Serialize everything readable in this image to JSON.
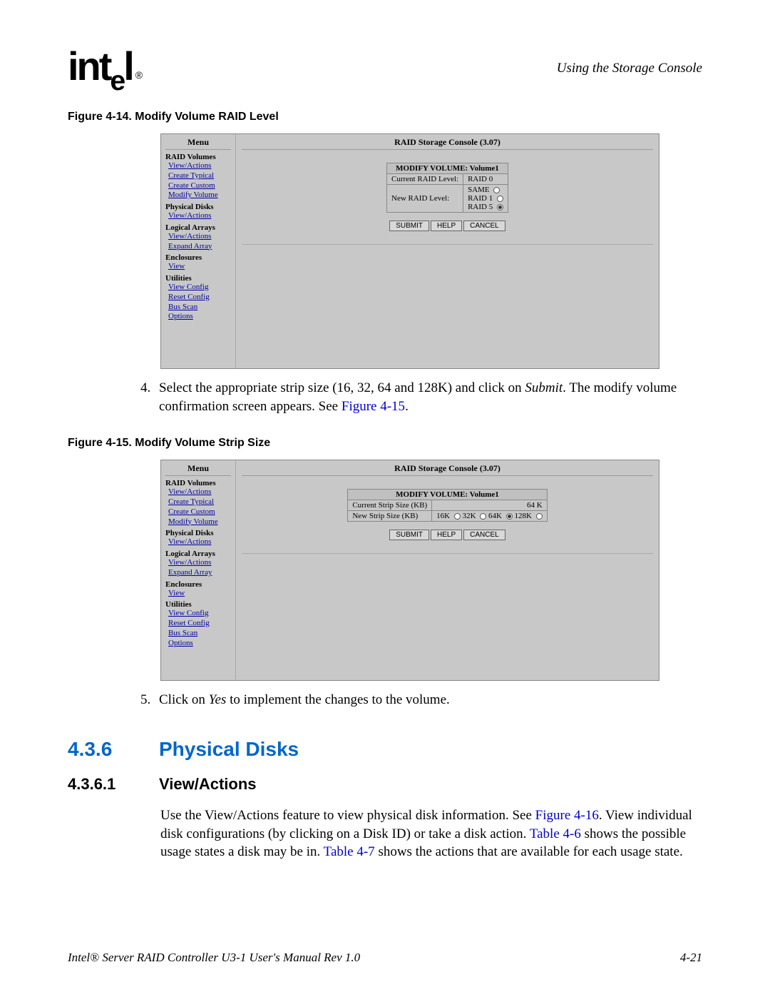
{
  "header": {
    "logo_text": "intel",
    "logo_reg": "®",
    "right_text": "Using the Storage Console"
  },
  "figure14": {
    "caption": "Figure 4-14. Modify Volume RAID Level",
    "menu_title": "Menu",
    "console_title": "RAID Storage Console (3.07)",
    "menu_sections": [
      {
        "head": "RAID Volumes",
        "links": [
          "View/Actions",
          "Create Typical",
          "Create Custom",
          "Modify Volume"
        ]
      },
      {
        "head": "Physical Disks",
        "links": [
          "View/Actions"
        ]
      },
      {
        "head": "Logical Arrays",
        "links": [
          "View/Actions",
          "Expand Array"
        ]
      },
      {
        "head": "Enclosures",
        "links": [
          "View"
        ]
      },
      {
        "head": "Utilities",
        "links": [
          "View Config",
          "Reset Config",
          "Bus Scan",
          "Options"
        ]
      }
    ],
    "panel_title": "MODIFY VOLUME: Volume1",
    "row1_label": "Current RAID Level:",
    "row1_value": "RAID 0",
    "row2_label": "New RAID Level:",
    "row2_options": [
      "SAME",
      "RAID 1",
      "RAID 5"
    ],
    "row2_selected": 2,
    "buttons": [
      "SUBMIT",
      "HELP",
      "CANCEL"
    ]
  },
  "step4": {
    "num": "4.",
    "text_a": "Select the appropriate strip size (16, 32, 64 and 128K) and click on ",
    "text_submit": "Submit",
    "text_b": ". The modify volume confirmation screen appears. See ",
    "link": "Figure 4-15",
    "text_c": "."
  },
  "figure15": {
    "caption": "Figure 4-15. Modify Volume Strip Size",
    "menu_title": "Menu",
    "console_title": "RAID Storage Console (3.07)",
    "panel_title": "MODIFY VOLUME: Volume1",
    "row1_label": "Current Strip Size (KB)",
    "row1_value": "64 K",
    "row2_label": "New Strip Size (KB)",
    "row2_options": [
      "16K",
      "32K",
      "64K",
      "128K"
    ],
    "row2_selected": 2,
    "buttons": [
      "SUBMIT",
      "HELP",
      "CANCEL"
    ]
  },
  "step5": {
    "num": "5.",
    "text_a": "Click on ",
    "text_yes": "Yes",
    "text_b": " to implement the changes to the volume."
  },
  "section436": {
    "num": "4.3.6",
    "title": "Physical Disks"
  },
  "section4361": {
    "num": "4.3.6.1",
    "title": "View/Actions",
    "para_a": "Use the View/Actions feature to view physical disk information. See ",
    "link1": "Figure 4-16",
    "para_b": ". View individual disk configurations (by clicking on a Disk ID) or take a disk action. ",
    "link2": "Table 4-6",
    "para_c": " shows the possible usage states a disk may be in. ",
    "link3": "Table 4-7",
    "para_d": " shows the actions that are available for each usage state."
  },
  "footer": {
    "left": "Intel® Server RAID Controller U3-1 User's Manual Rev 1.0",
    "right": "4-21"
  },
  "colors": {
    "link_blue": "#0000cc",
    "heading_blue": "#0066cc",
    "screenshot_bg": "#c8c8c8"
  }
}
